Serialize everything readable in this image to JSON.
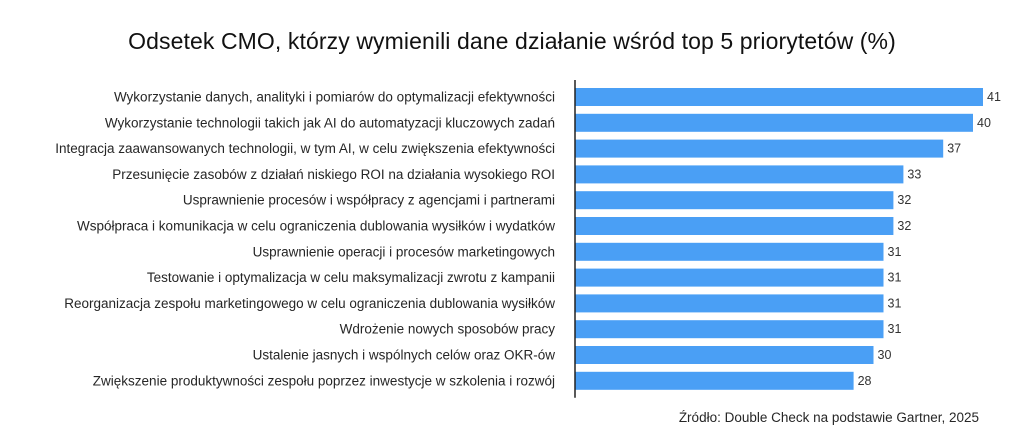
{
  "chart_data": {
    "type": "bar",
    "orientation": "horizontal",
    "title": "Odsetek CMO, którzy wymienili dane działanie wśród top 5 priorytetów (%)",
    "categories": [
      "Wykorzystanie danych, analityki i pomiarów do optymalizacji efektywności",
      "Wykorzystanie technologii takich jak AI do automatyzacji kluczowych zadań",
      "Integracja zaawansowanych technologii, w tym AI, w celu zwiększenia efektywności",
      "Przesunięcie zasobów z działań niskiego ROI na działania wysokiego ROI",
      "Usprawnienie procesów i współpracy z agencjami i partnerami",
      "Współpraca i komunikacja w celu ograniczenia dublowania wysiłków i wydatków",
      "Usprawnienie operacji i procesów marketingowych",
      "Testowanie i optymalizacja w celu maksymalizacji zwrotu z kampanii",
      "Reorganizacja zespołu marketingowego w celu ograniczenia dublowania wysiłków",
      "Wdrożenie nowych sposobów pracy",
      "Ustalenie jasnych i wspólnych celów oraz OKR-ów",
      "Zwiększenie produktywności zespołu poprzez inwestycje w szkolenia i rozwój"
    ],
    "values": [
      41,
      40,
      37,
      33,
      32,
      32,
      31,
      31,
      31,
      31,
      30,
      28
    ],
    "xlim": [
      0,
      41
    ],
    "grid": false,
    "legend": "none",
    "data_labels": true,
    "bar_color": "#4a9ff5",
    "axis_color": "#222222"
  },
  "source": "Źródło: Double Check na podstawie Gartner, 2025"
}
